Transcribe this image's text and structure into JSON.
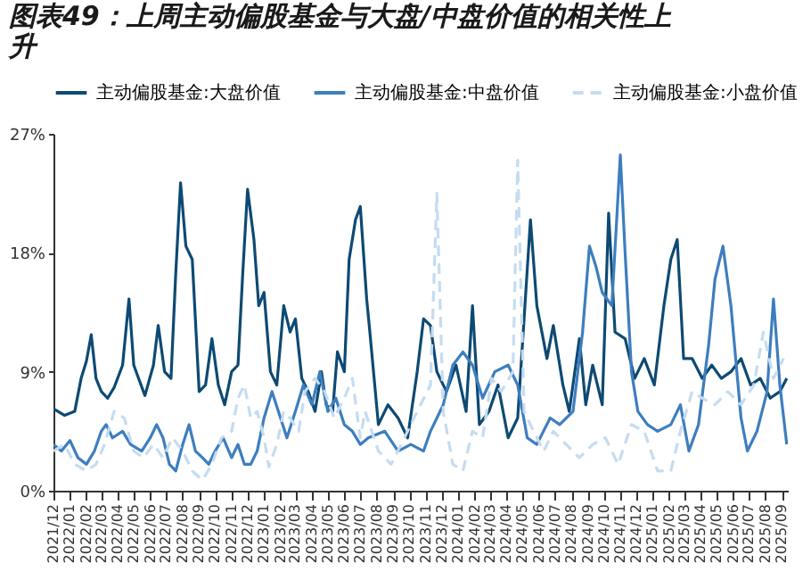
{
  "chart_data": {
    "type": "line",
    "title": "图表49：上周主动偏股基金与大盘/中盘价值的相关性上升",
    "ylim": [
      0,
      27
    ],
    "yticks": [
      {
        "value": 0,
        "label": "0%"
      },
      {
        "value": 9,
        "label": "9%"
      },
      {
        "value": 18,
        "label": "18%"
      },
      {
        "value": 27,
        "label": "27%"
      }
    ],
    "xlim": [
      "2021-12-01",
      "2025-09-12"
    ],
    "xticks": [
      {
        "value": "2021-12",
        "label": "2021/12"
      },
      {
        "value": "2022-01",
        "label": "2022/01"
      },
      {
        "value": "2022-02",
        "label": "2022/02"
      },
      {
        "value": "2022-03",
        "label": "2022/03"
      },
      {
        "value": "2022-04",
        "label": "2022/04"
      },
      {
        "value": "2022-05",
        "label": "2022/05"
      },
      {
        "value": "2022-06",
        "label": "2022/06"
      },
      {
        "value": "2022-07",
        "label": "2022/07"
      },
      {
        "value": "2022-08",
        "label": "2022/08"
      },
      {
        "value": "2022-09",
        "label": "2022/09"
      },
      {
        "value": "2022-10",
        "label": "2022/10"
      },
      {
        "value": "2022-11",
        "label": "2022/11"
      },
      {
        "value": "2022-12",
        "label": "2022/12"
      },
      {
        "value": "2023-01",
        "label": "2023/01"
      },
      {
        "value": "2023-02",
        "label": "2023/02"
      },
      {
        "value": "2023-03",
        "label": "2023/03"
      },
      {
        "value": "2023-04",
        "label": "2023/04"
      },
      {
        "value": "2023-05",
        "label": "2023/05"
      },
      {
        "value": "2023-06",
        "label": "2023/06"
      },
      {
        "value": "2023-07",
        "label": "2023/07"
      },
      {
        "value": "2023-08",
        "label": "2023/08"
      },
      {
        "value": "2023-09",
        "label": "2023/09"
      },
      {
        "value": "2023-10",
        "label": "2023/10"
      },
      {
        "value": "2023-11",
        "label": "2023/11"
      },
      {
        "value": "2023-12",
        "label": "2023/12"
      },
      {
        "value": "2024-01",
        "label": "2024/01"
      },
      {
        "value": "2024-02",
        "label": "2024/02"
      },
      {
        "value": "2024-03",
        "label": "2024/03"
      },
      {
        "value": "2024-04",
        "label": "2024/04"
      },
      {
        "value": "2024-05",
        "label": "2024/05"
      },
      {
        "value": "2024-06",
        "label": "2024/06"
      },
      {
        "value": "2024-07",
        "label": "2024/07"
      },
      {
        "value": "2024-08",
        "label": "2024/08"
      },
      {
        "value": "2024-09",
        "label": "2024/09"
      },
      {
        "value": "2024-10",
        "label": "2024/10"
      },
      {
        "value": "2024-11",
        "label": "2024/11"
      },
      {
        "value": "2024-12",
        "label": "2024/12"
      },
      {
        "value": "2025-01",
        "label": "2025/01"
      },
      {
        "value": "2025-02",
        "label": "2025/02"
      },
      {
        "value": "2025-03",
        "label": "2025/03"
      },
      {
        "value": "2025-04",
        "label": "2025/04"
      },
      {
        "value": "2025-05",
        "label": "2025/05"
      },
      {
        "value": "2025-06",
        "label": "2025/06"
      },
      {
        "value": "2025-07",
        "label": "2025/07"
      },
      {
        "value": "2025-08",
        "label": "2025/08"
      },
      {
        "value": "2025-09",
        "label": "2025/09"
      }
    ],
    "grid": false,
    "legend": "top",
    "series": [
      {
        "name": "主动偏股基金:大盘价值",
        "color": "#0d4a73",
        "line_style": "solid",
        "x": [
          "2021-12-01",
          "2021-12-22",
          "2022-01-10",
          "2022-01-22",
          "2022-02-01",
          "2022-02-10",
          "2022-02-19",
          "2022-03-01",
          "2022-03-13",
          "2022-03-25",
          "2022-04-10",
          "2022-04-22",
          "2022-05-01",
          "2022-05-10",
          "2022-05-22",
          "2022-06-07",
          "2022-06-16",
          "2022-06-28",
          "2022-07-10",
          "2022-07-19",
          "2022-07-28",
          "2022-08-07",
          "2022-08-19",
          "2022-09-01",
          "2022-09-13",
          "2022-09-25",
          "2022-10-07",
          "2022-10-19",
          "2022-11-01",
          "2022-11-13",
          "2022-11-22",
          "2022-12-01",
          "2022-12-13",
          "2022-12-22",
          "2023-01-01",
          "2023-01-13",
          "2023-01-25",
          "2023-02-07",
          "2023-02-19",
          "2023-03-01",
          "2023-03-13",
          "2023-03-25",
          "2023-04-07",
          "2023-04-19",
          "2023-04-28",
          "2023-05-10",
          "2023-05-19",
          "2023-06-01",
          "2023-06-10",
          "2023-06-22",
          "2023-07-01",
          "2023-07-13",
          "2023-07-19",
          "2023-08-04",
          "2023-08-22",
          "2023-09-10",
          "2023-09-28",
          "2023-10-16",
          "2023-10-28",
          "2023-11-10",
          "2023-11-22",
          "2023-12-10",
          "2023-12-28",
          "2024-01-16",
          "2024-01-28",
          "2024-02-10",
          "2024-02-28",
          "2024-03-16",
          "2024-04-04",
          "2024-04-22",
          "2024-05-04",
          "2024-05-16",
          "2024-05-28",
          "2024-06-16",
          "2024-06-28",
          "2024-07-16",
          "2024-07-28",
          "2024-08-16",
          "2024-08-28",
          "2024-09-10",
          "2024-09-28",
          "2024-10-10",
          "2024-10-22",
          "2024-11-10",
          "2024-11-28",
          "2024-12-16",
          "2025-01-04",
          "2025-01-22",
          "2025-02-04",
          "2025-02-16",
          "2025-02-28",
          "2025-03-16",
          "2025-04-04",
          "2025-04-22",
          "2025-05-10",
          "2025-05-28",
          "2025-06-16",
          "2025-07-04",
          "2025-07-22",
          "2025-08-10",
          "2025-08-28",
          "2025-09-10"
        ],
        "values": [
          6.2,
          5.7,
          6.0,
          8.5,
          9.8,
          11.8,
          8.5,
          7.5,
          7.0,
          7.8,
          9.5,
          14.5,
          9.5,
          8.5,
          7.2,
          9.5,
          12.5,
          9.0,
          8.5,
          16.5,
          23.3,
          18.5,
          17.5,
          7.5,
          8.0,
          11.5,
          8.0,
          6.5,
          9.0,
          9.5,
          16.5,
          22.8,
          19.0,
          14.0,
          15.0,
          9.0,
          8.0,
          14.0,
          12.0,
          13.0,
          8.5,
          7.5,
          6.0,
          9.0,
          6.5,
          6.0,
          10.5,
          9.0,
          17.5,
          20.5,
          21.5,
          14.5,
          12.0,
          5.0,
          6.5,
          5.5,
          4.0,
          9.0,
          13.0,
          12.5,
          9.0,
          7.5,
          9.5,
          6.0,
          14.0,
          5.0,
          6.0,
          8.0,
          4.0,
          5.5,
          13.0,
          20.5,
          14.0,
          10.0,
          12.5,
          8.0,
          6.0,
          11.5,
          6.5,
          9.5,
          6.5,
          21.0,
          12.0,
          11.5,
          8.5,
          10.0,
          8.0,
          14.0,
          17.5,
          19.0,
          10.0,
          10.0,
          8.5,
          9.5,
          8.5,
          9.0,
          10.0,
          8.0,
          8.5,
          7.0,
          7.5,
          8.5
        ]
      },
      {
        "name": "主动偏股基金:中盘价值",
        "color": "#3d7ebf",
        "line_style": "solid",
        "x": [
          "2021-12-01",
          "2021-12-16",
          "2022-01-01",
          "2022-01-16",
          "2022-02-01",
          "2022-02-16",
          "2022-03-01",
          "2022-03-10",
          "2022-03-22",
          "2022-04-10",
          "2022-04-25",
          "2022-05-16",
          "2022-06-01",
          "2022-06-13",
          "2022-06-25",
          "2022-07-07",
          "2022-07-19",
          "2022-08-01",
          "2022-08-13",
          "2022-08-25",
          "2022-09-07",
          "2022-09-19",
          "2022-10-01",
          "2022-10-16",
          "2022-11-01",
          "2022-11-13",
          "2022-11-25",
          "2022-12-07",
          "2022-12-19",
          "2023-01-01",
          "2023-01-16",
          "2023-02-01",
          "2023-02-13",
          "2023-03-01",
          "2023-03-16",
          "2023-04-01",
          "2023-04-16",
          "2023-05-01",
          "2023-05-16",
          "2023-06-01",
          "2023-06-16",
          "2023-07-01",
          "2023-07-16",
          "2023-08-16",
          "2023-09-10",
          "2023-10-04",
          "2023-10-28",
          "2023-11-10",
          "2023-12-04",
          "2023-12-22",
          "2024-01-10",
          "2024-01-28",
          "2024-02-16",
          "2024-03-10",
          "2024-04-04",
          "2024-04-22",
          "2024-05-10",
          "2024-05-28",
          "2024-06-22",
          "2024-07-10",
          "2024-08-04",
          "2024-08-22",
          "2024-09-04",
          "2024-09-16",
          "2024-09-28",
          "2024-10-16",
          "2024-11-01",
          "2024-11-10",
          "2024-11-22",
          "2024-12-04",
          "2024-12-22",
          "2025-01-10",
          "2025-02-04",
          "2025-02-22",
          "2025-03-10",
          "2025-03-28",
          "2025-04-16",
          "2025-04-28",
          "2025-05-13",
          "2025-05-28",
          "2025-06-16",
          "2025-06-28",
          "2025-07-16",
          "2025-08-04",
          "2025-08-16",
          "2025-08-28",
          "2025-09-10"
        ],
        "values": [
          3.5,
          3.0,
          3.8,
          2.5,
          2.0,
          3.0,
          4.5,
          5.0,
          4.0,
          4.5,
          3.5,
          3.0,
          4.0,
          5.0,
          4.0,
          2.0,
          1.5,
          3.5,
          5.0,
          3.0,
          2.5,
          2.0,
          3.0,
          4.0,
          2.5,
          3.5,
          2.0,
          2.0,
          3.0,
          5.5,
          7.5,
          5.5,
          4.0,
          6.0,
          8.0,
          6.5,
          9.0,
          6.0,
          7.0,
          5.0,
          4.5,
          3.5,
          4.0,
          4.5,
          3.0,
          3.5,
          3.0,
          4.5,
          6.5,
          9.5,
          10.5,
          9.5,
          7.0,
          9.0,
          9.5,
          8.0,
          4.0,
          3.5,
          5.5,
          5.0,
          6.0,
          12.0,
          18.5,
          17.0,
          15.0,
          14.0,
          25.4,
          18.0,
          9.0,
          6.0,
          5.0,
          4.5,
          5.0,
          6.5,
          3.0,
          5.0,
          11.0,
          16.0,
          18.5,
          14.0,
          5.5,
          3.0,
          4.5,
          7.5,
          14.5,
          8.0,
          3.5
        ]
      },
      {
        "name": "主动偏股基金:小盘价值",
        "color": "#c5dcf0",
        "line_style": "dashed",
        "x": [
          "2021-12-01",
          "2021-12-22",
          "2022-01-10",
          "2022-02-01",
          "2022-02-19",
          "2022-03-07",
          "2022-03-25",
          "2022-04-13",
          "2022-05-01",
          "2022-05-19",
          "2022-06-07",
          "2022-06-25",
          "2022-07-13",
          "2022-08-01",
          "2022-08-19",
          "2022-09-07",
          "2022-09-25",
          "2022-10-13",
          "2022-11-01",
          "2022-11-13",
          "2022-11-25",
          "2022-12-07",
          "2022-12-19",
          "2023-01-01",
          "2023-01-10",
          "2023-01-25",
          "2023-02-07",
          "2023-02-19",
          "2023-03-07",
          "2023-03-19",
          "2023-04-07",
          "2023-04-25",
          "2023-05-13",
          "2023-06-01",
          "2023-06-16",
          "2023-07-01",
          "2023-07-10",
          "2023-08-04",
          "2023-08-28",
          "2023-09-22",
          "2023-10-16",
          "2023-11-10",
          "2023-11-22",
          "2023-12-04",
          "2023-12-22",
          "2024-01-10",
          "2024-01-28",
          "2024-02-16",
          "2024-03-04",
          "2024-03-22",
          "2024-04-13",
          "2024-04-22",
          "2024-05-04",
          "2024-05-22",
          "2024-06-10",
          "2024-06-28",
          "2024-07-22",
          "2024-08-16",
          "2024-09-10",
          "2024-10-04",
          "2024-10-28",
          "2024-11-22",
          "2024-12-16",
          "2025-01-10",
          "2025-02-04",
          "2025-02-22",
          "2025-03-16",
          "2025-04-04",
          "2025-04-28",
          "2025-05-22",
          "2025-06-16",
          "2025-07-10",
          "2025-07-28",
          "2025-08-16",
          "2025-09-04"
        ],
        "values": [
          3.0,
          3.5,
          2.0,
          1.5,
          2.0,
          3.5,
          6.0,
          5.5,
          3.0,
          2.5,
          3.5,
          2.5,
          4.0,
          3.0,
          1.5,
          0.8,
          2.0,
          4.0,
          4.5,
          7.0,
          8.0,
          5.5,
          6.0,
          4.0,
          1.8,
          3.5,
          6.0,
          5.5,
          4.5,
          7.5,
          8.5,
          7.5,
          5.5,
          7.0,
          8.5,
          4.0,
          6.0,
          3.0,
          2.0,
          4.0,
          6.0,
          8.0,
          22.5,
          6.0,
          2.0,
          1.5,
          4.5,
          4.0,
          8.5,
          7.5,
          9.0,
          25.0,
          6.0,
          4.5,
          3.0,
          4.5,
          3.5,
          2.5,
          3.5,
          4.0,
          2.0,
          5.0,
          4.5,
          1.5,
          1.5,
          4.5,
          7.5,
          7.0,
          6.5,
          7.5,
          6.5,
          8.0,
          12.0,
          8.5,
          10.0
        ]
      }
    ]
  }
}
